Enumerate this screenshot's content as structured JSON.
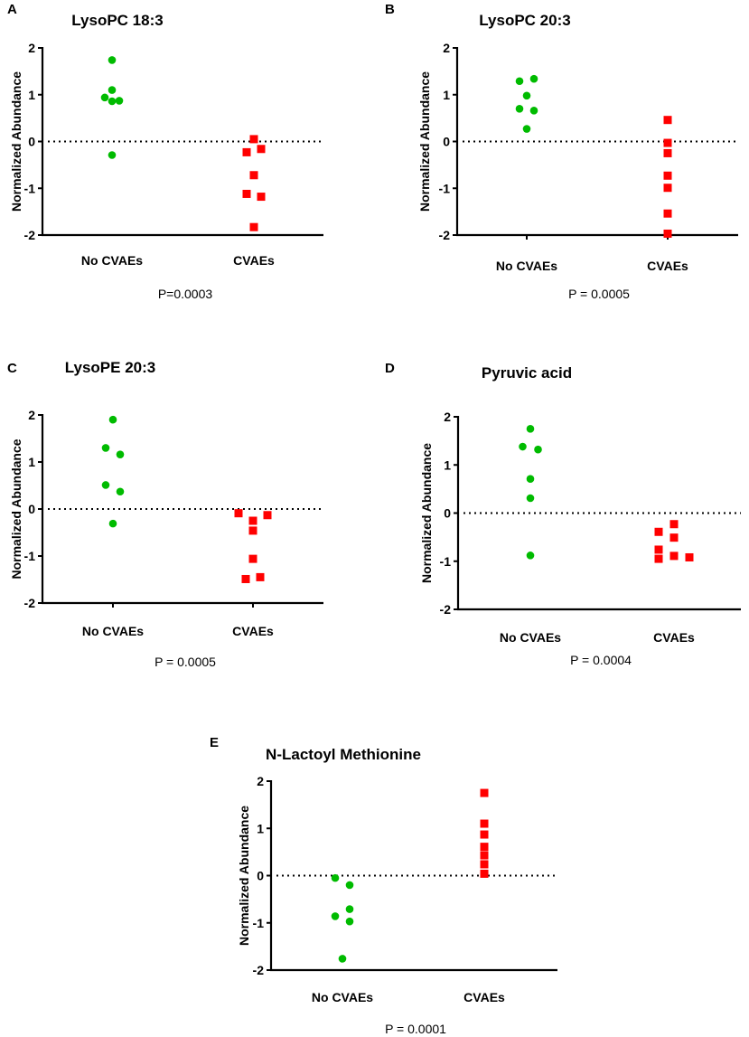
{
  "chart_data": [
    {
      "panel": "A",
      "type": "scatter",
      "title": "LysoPC 18:3",
      "ylabel": "Normalized Abundance",
      "ylim": [
        -2,
        2
      ],
      "yticks": [
        "2",
        "1",
        "0",
        "-1",
        "-2"
      ],
      "categories": [
        "No CVAEs",
        "CVAEs"
      ],
      "reference_line": 0,
      "pvalue": "P=0.0003",
      "series": [
        {
          "name": "No CVAEs",
          "color": "#00bb00",
          "marker": "circle",
          "values": [
            1.74,
            1.1,
            0.94,
            0.86,
            0.87,
            -0.29
          ]
        },
        {
          "name": "CVAEs",
          "color": "#ff0000",
          "marker": "square",
          "values": [
            0.05,
            -0.23,
            -0.16,
            -0.72,
            -1.12,
            -1.18,
            -1.83
          ]
        }
      ]
    },
    {
      "panel": "B",
      "type": "scatter",
      "title": "LysoPC 20:3",
      "ylabel": "Normalized Abundance",
      "ylim": [
        -2,
        2
      ],
      "yticks": [
        "2",
        "1",
        "0",
        "-1",
        "-2"
      ],
      "categories": [
        "No CVAEs",
        "CVAEs"
      ],
      "reference_line": 0,
      "pvalue": "P = 0.0005",
      "series": [
        {
          "name": "No CVAEs",
          "color": "#00bb00",
          "marker": "circle",
          "values": [
            1.29,
            1.34,
            0.98,
            0.7,
            0.66,
            0.27
          ]
        },
        {
          "name": "CVAEs",
          "color": "#ff0000",
          "marker": "square",
          "values": [
            0.46,
            -0.03,
            -0.25,
            -0.73,
            -0.99,
            -1.54,
            -1.97
          ]
        }
      ]
    },
    {
      "panel": "C",
      "type": "scatter",
      "title": "LysoPE 20:3",
      "ylabel": "Normalized Abundance",
      "ylim": [
        -2,
        2
      ],
      "yticks": [
        "2",
        "1",
        "0",
        "-1",
        "-2"
      ],
      "categories": [
        "No CVAEs",
        "CVAEs"
      ],
      "reference_line": 0,
      "pvalue": "P = 0.0005",
      "series": [
        {
          "name": "No CVAEs",
          "color": "#00bb00",
          "marker": "circle",
          "values": [
            1.9,
            1.3,
            1.16,
            0.51,
            0.37,
            -0.31
          ]
        },
        {
          "name": "CVAEs",
          "color": "#ff0000",
          "marker": "square",
          "values": [
            -0.09,
            -0.13,
            -0.25,
            -0.46,
            -1.06,
            -1.49,
            -1.45
          ]
        }
      ]
    },
    {
      "panel": "D",
      "type": "scatter",
      "title": "Pyruvic acid",
      "ylabel": "Normalized Abundance",
      "ylim": [
        -2,
        2
      ],
      "yticks": [
        "2",
        "1",
        "0",
        "-1",
        "-2"
      ],
      "categories": [
        "No CVAEs",
        "CVAEs"
      ],
      "reference_line": 0,
      "pvalue": "P = 0.0004",
      "series": [
        {
          "name": "No CVAEs",
          "color": "#00bb00",
          "marker": "circle",
          "values": [
            1.75,
            1.38,
            1.32,
            0.71,
            0.31,
            -0.88
          ]
        },
        {
          "name": "CVAEs",
          "color": "#ff0000",
          "marker": "square",
          "values": [
            -0.23,
            -0.39,
            -0.51,
            -0.76,
            -0.95,
            -0.89,
            -0.92
          ]
        }
      ]
    },
    {
      "panel": "E",
      "type": "scatter",
      "title": "N-Lactoyl Methionine",
      "ylabel": "Normalized Abundance",
      "ylim": [
        -2,
        2
      ],
      "yticks": [
        "2",
        "1",
        "0",
        "-1",
        "-2"
      ],
      "categories": [
        "No CVAEs",
        "CVAEs"
      ],
      "reference_line": 0,
      "pvalue": "P = 0.0001",
      "series": [
        {
          "name": "No CVAEs",
          "color": "#00bb00",
          "marker": "circle",
          "values": [
            -0.05,
            -0.2,
            -0.71,
            -0.86,
            -0.97,
            -1.76
          ]
        },
        {
          "name": "CVAEs",
          "color": "#ff0000",
          "marker": "square",
          "values": [
            1.75,
            1.1,
            0.87,
            0.61,
            0.43,
            0.24,
            0.04
          ]
        }
      ]
    }
  ]
}
